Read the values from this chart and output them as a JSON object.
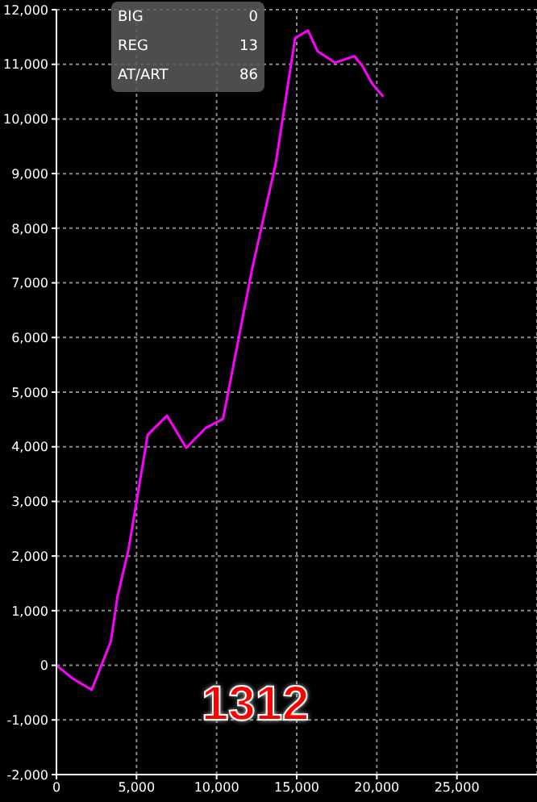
{
  "chart_data": {
    "type": "line",
    "x": [
      0,
      1000,
      2200,
      3400,
      3800,
      4500,
      5700,
      6900,
      8100,
      9300,
      10400,
      12200,
      13700,
      14900,
      15700,
      16300,
      17400,
      18600,
      19100,
      19700,
      20400
    ],
    "series": [
      {
        "color": "#ff00ff",
        "values": [
          0,
          -240,
          -450,
          440,
          1240,
          2120,
          4220,
          4570,
          3980,
          4340,
          4510,
          7230,
          9200,
          11480,
          11620,
          11240,
          11030,
          11150,
          10970,
          10650,
          10410
        ]
      }
    ],
    "xlim": [
      0,
      30000
    ],
    "xticks": [
      0,
      {
        "value": 5000,
        "label": "5,000"
      },
      {
        "value": 10000,
        "label": "10,000"
      },
      {
        "value": 15000,
        "label": "15,000"
      },
      {
        "value": 20000,
        "label": "20,000"
      },
      {
        "value": 25000,
        "label": "25,000"
      }
    ],
    "ylim": [
      -2000,
      12000
    ],
    "yticks": [
      {
        "value": -2000,
        "label": "-2,000"
      },
      {
        "value": -1000,
        "label": "-1,000"
      },
      0,
      {
        "value": 1000,
        "label": "1,000"
      },
      {
        "value": 2000,
        "label": "2,000"
      },
      {
        "value": 3000,
        "label": "3,000"
      },
      {
        "value": 4000,
        "label": "4,000"
      },
      {
        "value": 5000,
        "label": "5,000"
      },
      {
        "value": 6000,
        "label": "6,000"
      },
      {
        "value": 7000,
        "label": "7,000"
      },
      {
        "value": 8000,
        "label": "8,000"
      },
      {
        "value": 9000,
        "label": "9,000"
      },
      {
        "value": 10000,
        "label": "10,000"
      },
      {
        "value": 11000,
        "label": "11,000"
      },
      {
        "value": 12000,
        "label": "12,000"
      }
    ],
    "grid": true,
    "marker": "none",
    "line_style": "solid",
    "annotations": [
      "BIG",
      "0",
      "REG",
      "13",
      "AT/ART",
      "86",
      "1312"
    ]
  }
}
